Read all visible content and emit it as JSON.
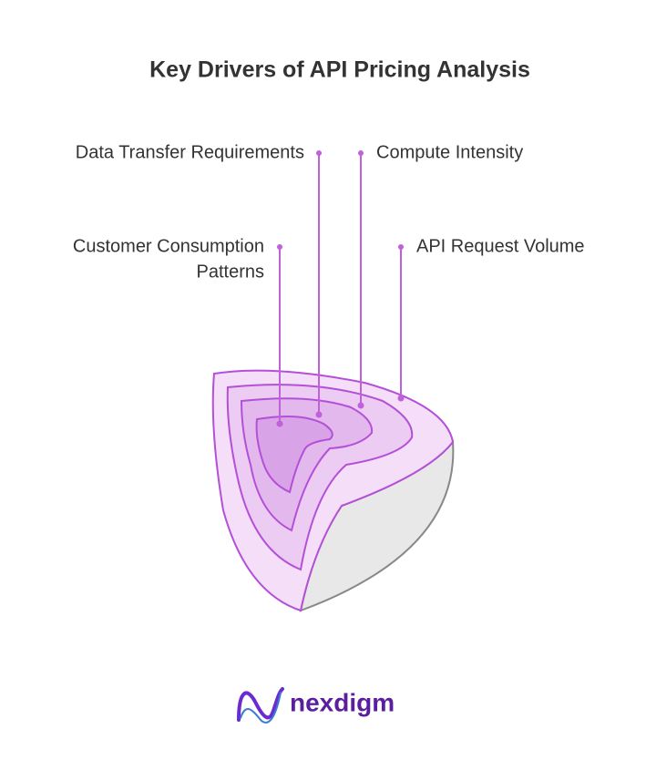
{
  "header": {
    "title": "Key Drivers of API Pricing Analysis"
  },
  "layers": [
    {
      "label": "Data Transfer Requirements"
    },
    {
      "label": "Compute Intensity"
    },
    {
      "lines": [
        "Customer Consumption",
        "Patterns"
      ]
    },
    {
      "label": "API Request Volume"
    }
  ],
  "footer": {
    "logo": "nexdigm"
  }
}
